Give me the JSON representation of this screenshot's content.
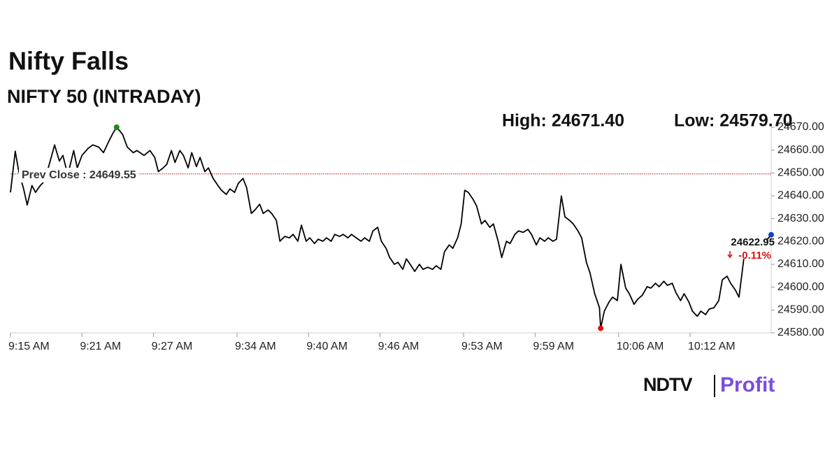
{
  "chart_data": {
    "type": "line",
    "title": "Nifty Falls",
    "subtitle": "NIFTY 50 (INTRADAY)",
    "high_label": "High: 24671.40",
    "low_label": "Low: 24579.70",
    "color": "#000000",
    "high_color": "#1a8a1a",
    "low_color": "#e01010",
    "last_color": "#1040d0",
    "x": [
      0,
      0.4,
      0.7,
      1.1,
      1.4,
      1.8,
      2.1,
      2.5,
      2.8,
      3.2,
      3.7,
      4.1,
      4.4,
      4.8,
      5.3,
      5.6,
      6.0,
      6.5,
      6.9,
      7.4,
      7.8,
      8.3,
      8.6,
      8.9,
      9.4,
      9.8,
      10.3,
      10.6,
      11.2,
      11.7,
      12.1,
      12.4,
      12.8,
      13.1,
      13.5,
      13.8,
      14.2,
      14.5,
      14.9,
      15.2,
      15.6,
      15.9,
      16.3,
      16.6,
      17.0,
      17.4,
      17.7,
      18.1,
      18.4,
      18.8,
      19.1,
      19.5,
      19.8,
      20.2,
      20.5,
      20.9,
      21.2,
      21.6,
      21.9,
      22.3,
      22.6,
      23.0,
      23.4,
      23.7,
      24.1,
      24.4,
      24.8,
      25.1,
      25.5,
      25.8,
      26.2,
      26.5,
      26.9,
      27.2,
      27.6,
      27.9,
      28.3,
      28.6,
      29.0,
      29.4,
      29.7,
      30.1,
      30.4,
      30.8,
      31.1,
      31.5,
      31.8,
      32.2,
      32.5,
      32.9,
      33.2,
      33.6,
      33.9,
      34.3,
      34.6,
      35.0,
      35.4,
      35.7,
      36.1,
      36.4,
      36.8,
      37.1,
      37.5,
      37.8,
      38.1,
      38.4,
      38.8,
      39.1,
      39.5,
      39.8,
      40.2,
      40.5,
      40.9,
      41.2,
      41.6,
      41.9,
      42.3,
      42.6,
      43.0,
      43.4,
      43.7,
      44.1,
      44.4,
      44.8,
      45.1,
      45.5,
      45.8,
      46.2,
      46.5,
      46.9,
      47.2,
      47.6,
      47.9,
      48.3,
      48.6,
      49.0,
      49.4,
      49.5,
      49.8,
      50.2,
      50.5,
      50.9,
      51.2,
      51.6,
      51.9,
      52.3,
      52.6,
      53.0,
      53.4,
      53.7,
      54.1,
      54.4,
      54.8,
      55.1,
      55.5,
      55.8,
      56.2,
      56.5,
      56.9,
      57.2,
      57.6,
      57.9,
      58.3,
      58.6,
      59.0,
      59.4,
      59.7,
      60.1,
      60.4,
      60.8,
      61.1,
      61.5,
      62.5,
      63.4,
      63.8
    ],
    "values": [
      24641.5,
      24659.5,
      24650.6,
      24643.0,
      24636.0,
      24644.5,
      24641.5,
      24644.5,
      24646.1,
      24652.8,
      24662.3,
      24655.2,
      24657.7,
      24649.1,
      24659.8,
      24652.2,
      24657.7,
      24660.7,
      24662.3,
      24661.3,
      24658.9,
      24664.4,
      24667.5,
      24670,
      24666.9,
      24661.3,
      24658.9,
      24659.8,
      24657.7,
      24659.8,
      24656.8,
      24650.6,
      24652.2,
      24653.7,
      24659.8,
      24654.6,
      24659.8,
      24657.7,
      24652.2,
      24658.9,
      24652.8,
      24656.8,
      24650.6,
      24652.2,
      24647.6,
      24644.5,
      24642.4,
      24640.6,
      24643.0,
      24641.5,
      24645.4,
      24647.6,
      24643.6,
      24632.3,
      24633.8,
      24636.3,
      24632.3,
      24633.8,
      24632.3,
      24629.2,
      24620.1,
      24622.2,
      24621.6,
      24623.1,
      24620.1,
      24627.1,
      24620.1,
      24621.6,
      24619.1,
      24621.0,
      24620.1,
      24621.6,
      24620.1,
      24623.1,
      24622.2,
      24623.1,
      24621.6,
      24623.1,
      24621.6,
      24620.1,
      24621.6,
      24620.1,
      24624.6,
      24626.2,
      24620.1,
      24617.0,
      24613.0,
      24610.0,
      24610.9,
      24607.8,
      24612.4,
      24609.4,
      24606.9,
      24610.0,
      24607.8,
      24608.7,
      24607.8,
      24609.4,
      24607.8,
      24615.5,
      24618.5,
      24617.0,
      24621.6,
      24627.7,
      24642.4,
      24641.5,
      24638.4,
      24635.4,
      24627.7,
      24629.2,
      24626.2,
      24627.7,
      24620.1,
      24613.0,
      24620.1,
      24619.1,
      24623.1,
      24624.6,
      24624.0,
      24625.3,
      24623.1,
      24618.5,
      24621.6,
      24620.1,
      24621.6,
      24620.1,
      24621.0,
      24639.9,
      24630.8,
      24629.2,
      24627.7,
      24624.6,
      24621.6,
      24610.9,
      24606.3,
      24597.1,
      24591.0,
      24582,
      24589.5,
      24593.5,
      24595.6,
      24594.1,
      24610.0,
      24599.6,
      24597.1,
      24592.5,
      24594.7,
      24596.5,
      24600.2,
      24599.6,
      24601.7,
      24600.2,
      24602.6,
      24600.8,
      24601.7,
      24597.7,
      24594.1,
      24597.1,
      24593.5,
      24589.5,
      24587.3,
      24589.5,
      24588.0,
      24590.4,
      24591.0,
      24594.1,
      24603.2,
      24604.8,
      24601.7,
      24598.7,
      24595.6,
      24612.4,
      null,
      24620.5,
      24622.95
    ],
    "xlim": [
      0,
      63.8
    ],
    "xticks": [
      {
        "value": 0,
        "label": "9:15 AM"
      },
      {
        "value": 6,
        "label": "9:21 AM"
      },
      {
        "value": 12,
        "label": "9:27 AM"
      },
      {
        "value": 19,
        "label": "9:34 AM"
      },
      {
        "value": 25,
        "label": "9:40 AM"
      },
      {
        "value": 31,
        "label": "9:46 AM"
      },
      {
        "value": 38,
        "label": "9:53 AM"
      },
      {
        "value": 44,
        "label": "9:59 AM"
      },
      {
        "value": 51,
        "label": "10:06 AM"
      },
      {
        "value": 57,
        "label": "10:12 AM"
      }
    ],
    "ylim": [
      24580,
      24670
    ],
    "yticks": [
      {
        "value": 24580,
        "label": "24580.00"
      },
      {
        "value": 24590,
        "label": "24590.00"
      },
      {
        "value": 24600,
        "label": "24600.00"
      },
      {
        "value": 24610,
        "label": "24610.00"
      },
      {
        "value": 24620,
        "label": "24620.00"
      },
      {
        "value": 24630,
        "label": "24630.00"
      },
      {
        "value": 24640,
        "label": "24640.00"
      },
      {
        "value": 24650,
        "label": "24650.00"
      },
      {
        "value": 24660,
        "label": "24660.00"
      },
      {
        "value": 24670,
        "label": "24670.00"
      }
    ],
    "prev_close": {
      "label": "Prev Close : 24649.55",
      "value": 24649.55,
      "color": "#c00000"
    },
    "last_label": "24622.95",
    "change_label": "-0.11%",
    "change_color": "#e01010"
  },
  "logo": {
    "left": "NDTV",
    "right": "Profit"
  }
}
